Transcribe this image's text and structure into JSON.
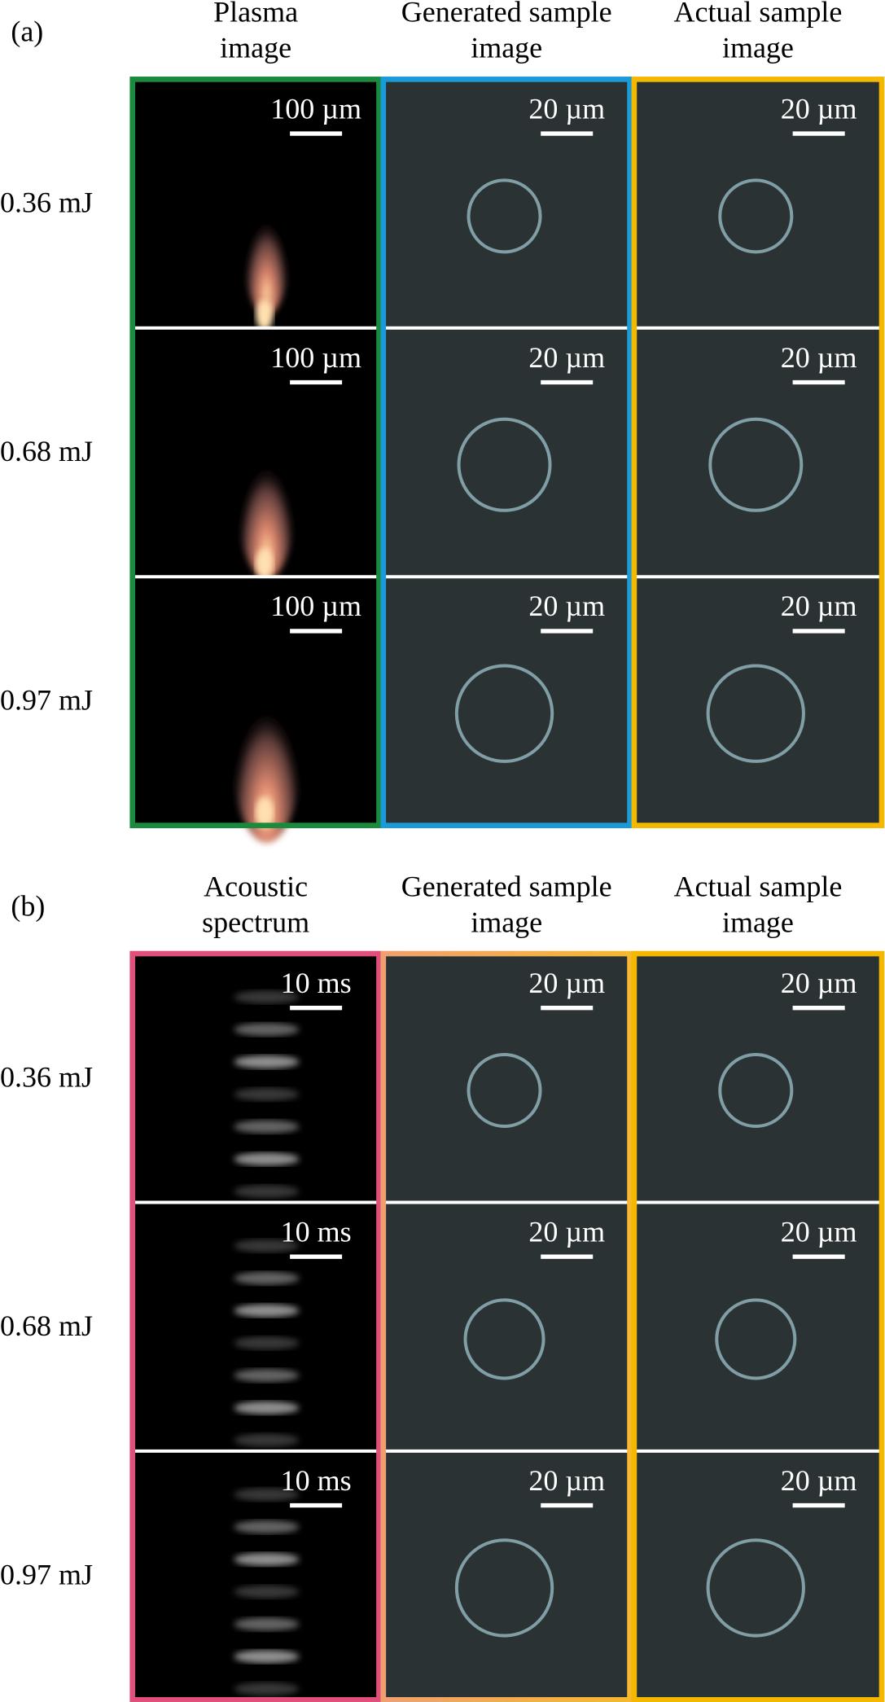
{
  "panels": [
    {
      "label": "(a)",
      "row_labels": [
        "0.36 mJ",
        "0.68 mJ",
        "0.97 mJ"
      ],
      "columns": [
        {
          "title_lines": [
            "Plasma",
            "image"
          ],
          "scale_bars": [
            "100 µm",
            "100 µm",
            "100 µm"
          ]
        },
        {
          "title_lines": [
            "Generated sample",
            "image"
          ],
          "scale_bars": [
            "20 µm",
            "20 µm",
            "20 µm"
          ]
        },
        {
          "title_lines": [
            "Actual sample",
            "image"
          ],
          "scale_bars": [
            "20 µm",
            "20 µm",
            "20 µm"
          ]
        }
      ]
    },
    {
      "label": "(b)",
      "row_labels": [
        "0.36 mJ",
        "0.68 mJ",
        "0.97 mJ"
      ],
      "columns": [
        {
          "title_lines": [
            "Acoustic",
            "spectrum"
          ],
          "scale_bars": [
            "10 ms",
            "10 ms",
            "10 ms"
          ]
        },
        {
          "title_lines": [
            "Generated sample",
            "image"
          ],
          "scale_bars": [
            "20 µm",
            "20 µm",
            "20 µm"
          ]
        },
        {
          "title_lines": [
            "Actual sample",
            "image"
          ],
          "scale_bars": [
            "20 µm",
            "20 µm",
            "20 µm"
          ]
        }
      ]
    }
  ]
}
